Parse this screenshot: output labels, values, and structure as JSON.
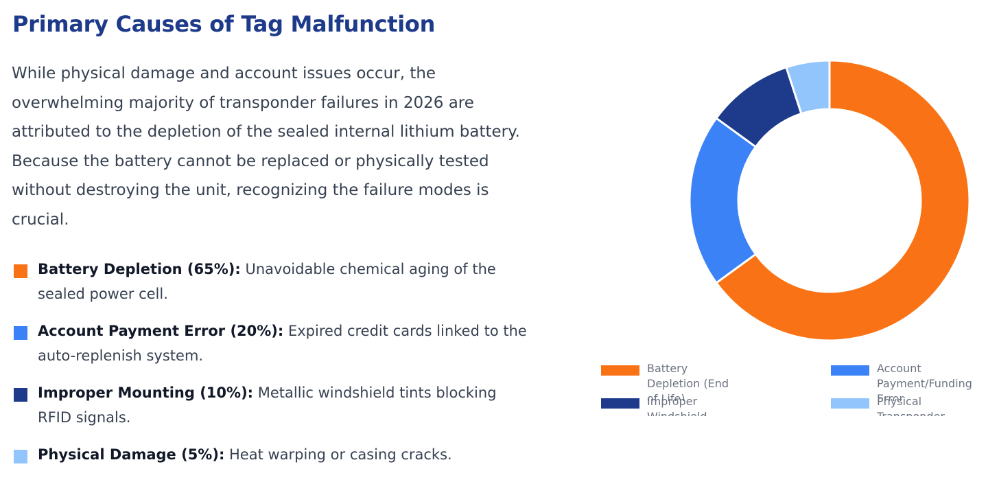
{
  "heading": "Primary Causes of Tag Malfunction",
  "intro": "While physical damage and account issues occur, the overwhelming majority of transponder failures in 2026 are attributed to the depletion of the sealed internal lithium battery. Because the battery cannot be replaced or physically tested without destroying the unit, recognizing the failure modes is crucial.",
  "causes": [
    {
      "label": "Battery Depletion (65%):",
      "text": " Unavoidable chemical aging of the sealed power cell.",
      "color": "#f97316"
    },
    {
      "label": "Account Payment Error (20%):",
      "text": " Expired credit cards linked to the auto-replenish system.",
      "color": "#3b82f6"
    },
    {
      "label": "Improper Mounting (10%):",
      "text": " Metallic windshield tints blocking RFID signals.",
      "color": "#1e3a8a"
    },
    {
      "label": "Physical Damage (5%):",
      "text": " Heat warping or casing cracks.",
      "color": "#93c5fd"
    }
  ],
  "chart_data": {
    "type": "pie",
    "variant": "doughnut",
    "start_angle_deg": 0,
    "direction": "clockwise",
    "legend_position": "bottom",
    "legend_entries_truncated": true,
    "slices": [
      {
        "label_lines": [
          "Battery",
          "Depletion (End",
          "of Life)"
        ],
        "value": 65,
        "color": "#f97316"
      },
      {
        "label_lines": [
          "Account",
          "Payment/Funding",
          "Error"
        ],
        "value": 20,
        "color": "#3b82f6"
      },
      {
        "label_lines": [
          "Improper",
          "Windshield"
        ],
        "value": 10,
        "color": "#1e3a8a"
      },
      {
        "label_lines": [
          "Physical",
          "Transponder"
        ],
        "value": 5,
        "color": "#93c5fd"
      }
    ]
  }
}
